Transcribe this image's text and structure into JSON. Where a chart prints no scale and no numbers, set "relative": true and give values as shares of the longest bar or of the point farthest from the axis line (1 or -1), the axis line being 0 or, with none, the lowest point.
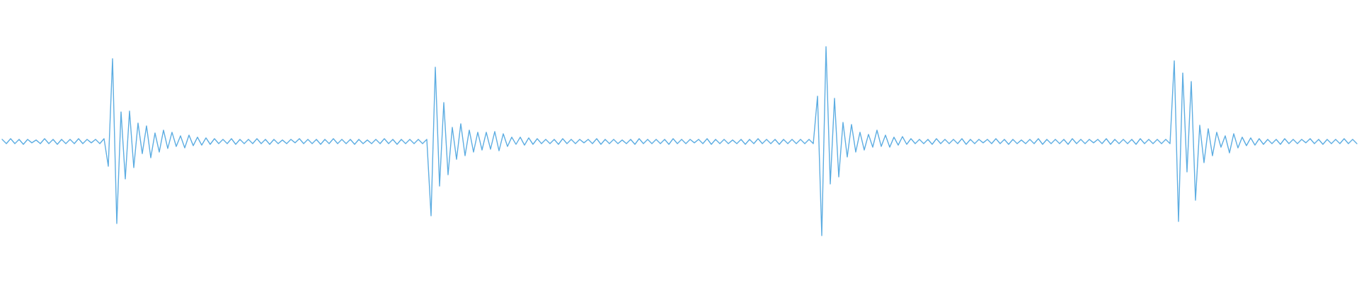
{
  "chart_data": {
    "type": "line",
    "relative": true,
    "categories": [
      null,
      null,
      null,
      null,
      null,
      null,
      null,
      null,
      null,
      null,
      null,
      null,
      null,
      null,
      null,
      null,
      null,
      null,
      null,
      null,
      null,
      null,
      null,
      null,
      null,
      null,
      null,
      null,
      null,
      null,
      null,
      null,
      null,
      null,
      null,
      null,
      null,
      null,
      null,
      null,
      null,
      null,
      null,
      null,
      null,
      null,
      null,
      null,
      null,
      null,
      null,
      null,
      null,
      null,
      null,
      null,
      null,
      null,
      null,
      null,
      null,
      null,
      null,
      null,
      null,
      null,
      null,
      null,
      null,
      null,
      null,
      null,
      null,
      null,
      null,
      null,
      null,
      null,
      null,
      null,
      null,
      null,
      null,
      null,
      null,
      null,
      null,
      null,
      null,
      null,
      null,
      null,
      null,
      null,
      null,
      null,
      null,
      null,
      null,
      null,
      null,
      null,
      null,
      null,
      null,
      null,
      null,
      null,
      null,
      null,
      null,
      null,
      null,
      null,
      null,
      null,
      null,
      null,
      null,
      null,
      null,
      null,
      null,
      null,
      null,
      null,
      null,
      null,
      null,
      null,
      null,
      null,
      null,
      null,
      null,
      null,
      null,
      null,
      null,
      null,
      null,
      null,
      null,
      null,
      null,
      null,
      null,
      null,
      null,
      null,
      null,
      null,
      null,
      null,
      null,
      null,
      null,
      null,
      null,
      null,
      null,
      null,
      null,
      null,
      null,
      null,
      null,
      null,
      null,
      null,
      null,
      null,
      null,
      null,
      null,
      null,
      null,
      null,
      null,
      null,
      null,
      null,
      null,
      null,
      null,
      null,
      null,
      null,
      null,
      null,
      null,
      null,
      null,
      null,
      null,
      null,
      null,
      null,
      null,
      null,
      null,
      null,
      null,
      null,
      null,
      null,
      null,
      null,
      null,
      null,
      null,
      null,
      null,
      null,
      null,
      null,
      null,
      null,
      null,
      null,
      null,
      null,
      null,
      null,
      null,
      null,
      null,
      null,
      null,
      null,
      null,
      null,
      null,
      null,
      null,
      null,
      null,
      null,
      null,
      null,
      null,
      null,
      null,
      null,
      null,
      null,
      null,
      null,
      null,
      null,
      null,
      null,
      null,
      null,
      null,
      null,
      null,
      null,
      null,
      null,
      null,
      null,
      null,
      null,
      null,
      null,
      null,
      null,
      null,
      null,
      null,
      null,
      null,
      null,
      null,
      null,
      null,
      null,
      null,
      null,
      null,
      null,
      null,
      null,
      null,
      null,
      null,
      null,
      null,
      null,
      null,
      null,
      null,
      null,
      null,
      null,
      null,
      null,
      null,
      null,
      null,
      null,
      null,
      null,
      null,
      null,
      null,
      null,
      null,
      null,
      null,
      null,
      null,
      null,
      null,
      null,
      null,
      null,
      null,
      null
    ],
    "series": [
      {
        "color": "#5dade2",
        "values": [
          0.509,
          0.487,
          0.513,
          0.487,
          0.509,
          0.483,
          0.509,
          0.491,
          0.506,
          0.487,
          0.513,
          0.487,
          0.509,
          0.483,
          0.509,
          0.487,
          0.509,
          0.487,
          0.513,
          0.487,
          0.509,
          0.491,
          0.509,
          0.487,
          0.513,
          0.367,
          0.936,
          0.064,
          0.655,
          0.3,
          0.659,
          0.36,
          0.596,
          0.434,
          0.581,
          0.412,
          0.543,
          0.442,
          0.558,
          0.461,
          0.547,
          0.472,
          0.528,
          0.464,
          0.532,
          0.476,
          0.521,
          0.479,
          0.517,
          0.483,
          0.513,
          0.487,
          0.509,
          0.487,
          0.513,
          0.483,
          0.509,
          0.487,
          0.509,
          0.487,
          0.513,
          0.487,
          0.509,
          0.483,
          0.509,
          0.487,
          0.506,
          0.487,
          0.509,
          0.491,
          0.513,
          0.487,
          0.509,
          0.487,
          0.509,
          0.483,
          0.509,
          0.487,
          0.513,
          0.487,
          0.509,
          0.487,
          0.509,
          0.483,
          0.509,
          0.487,
          0.506,
          0.487,
          0.509,
          0.487,
          0.513,
          0.487,
          0.509,
          0.483,
          0.509,
          0.487,
          0.509,
          0.487,
          0.509,
          0.487,
          0.509,
          0.105,
          0.891,
          0.262,
          0.704,
          0.322,
          0.573,
          0.404,
          0.592,
          0.423,
          0.558,
          0.442,
          0.547,
          0.453,
          0.547,
          0.457,
          0.551,
          0.449,
          0.539,
          0.472,
          0.521,
          0.483,
          0.521,
          0.479,
          0.517,
          0.483,
          0.513,
          0.487,
          0.509,
          0.487,
          0.509,
          0.483,
          0.513,
          0.487,
          0.509,
          0.487,
          0.509,
          0.491,
          0.509,
          0.487,
          0.513,
          0.483,
          0.509,
          0.487,
          0.509,
          0.487,
          0.506,
          0.487,
          0.509,
          0.483,
          0.513,
          0.487,
          0.509,
          0.487,
          0.509,
          0.487,
          0.509,
          0.483,
          0.513,
          0.487,
          0.509,
          0.487,
          0.509,
          0.491,
          0.509,
          0.487,
          0.513,
          0.483,
          0.509,
          0.487,
          0.509,
          0.487,
          0.506,
          0.487,
          0.509,
          0.483,
          0.509,
          0.487,
          0.513,
          0.487,
          0.509,
          0.487,
          0.509,
          0.483,
          0.509,
          0.487,
          0.509,
          0.487,
          0.509,
          0.487,
          0.509,
          0.487,
          0.738,
          0.0,
          1.0,
          0.273,
          0.727,
          0.311,
          0.599,
          0.416,
          0.588,
          0.442,
          0.547,
          0.453,
          0.536,
          0.468,
          0.558,
          0.472,
          0.532,
          0.468,
          0.521,
          0.479,
          0.524,
          0.483,
          0.513,
          0.487,
          0.509,
          0.487,
          0.509,
          0.483,
          0.513,
          0.487,
          0.509,
          0.487,
          0.509,
          0.487,
          0.513,
          0.483,
          0.509,
          0.487,
          0.509,
          0.491,
          0.509,
          0.487,
          0.513,
          0.487,
          0.509,
          0.483,
          0.509,
          0.487,
          0.506,
          0.487,
          0.509,
          0.487,
          0.513,
          0.483,
          0.509,
          0.487,
          0.509,
          0.487,
          0.509,
          0.483,
          0.513,
          0.487,
          0.509,
          0.487,
          0.509,
          0.491,
          0.509,
          0.487,
          0.513,
          0.483,
          0.509,
          0.487,
          0.509,
          0.487,
          0.509,
          0.483,
          0.513,
          0.487,
          0.509,
          0.487,
          0.509,
          0.487,
          0.509,
          0.487,
          0.925,
          0.075,
          0.861,
          0.337,
          0.816,
          0.187,
          0.584,
          0.386,
          0.566,
          0.423,
          0.547,
          0.468,
          0.528,
          0.438,
          0.539,
          0.464,
          0.521,
          0.476,
          0.517,
          0.479,
          0.513,
          0.483,
          0.509,
          0.487,
          0.509,
          0.483,
          0.513,
          0.487,
          0.509,
          0.487,
          0.509,
          0.491,
          0.513,
          0.487,
          0.509,
          0.483,
          0.509,
          0.487,
          0.509,
          0.487,
          0.513,
          0.487,
          0.509,
          0.487
        ]
      }
    ]
  }
}
